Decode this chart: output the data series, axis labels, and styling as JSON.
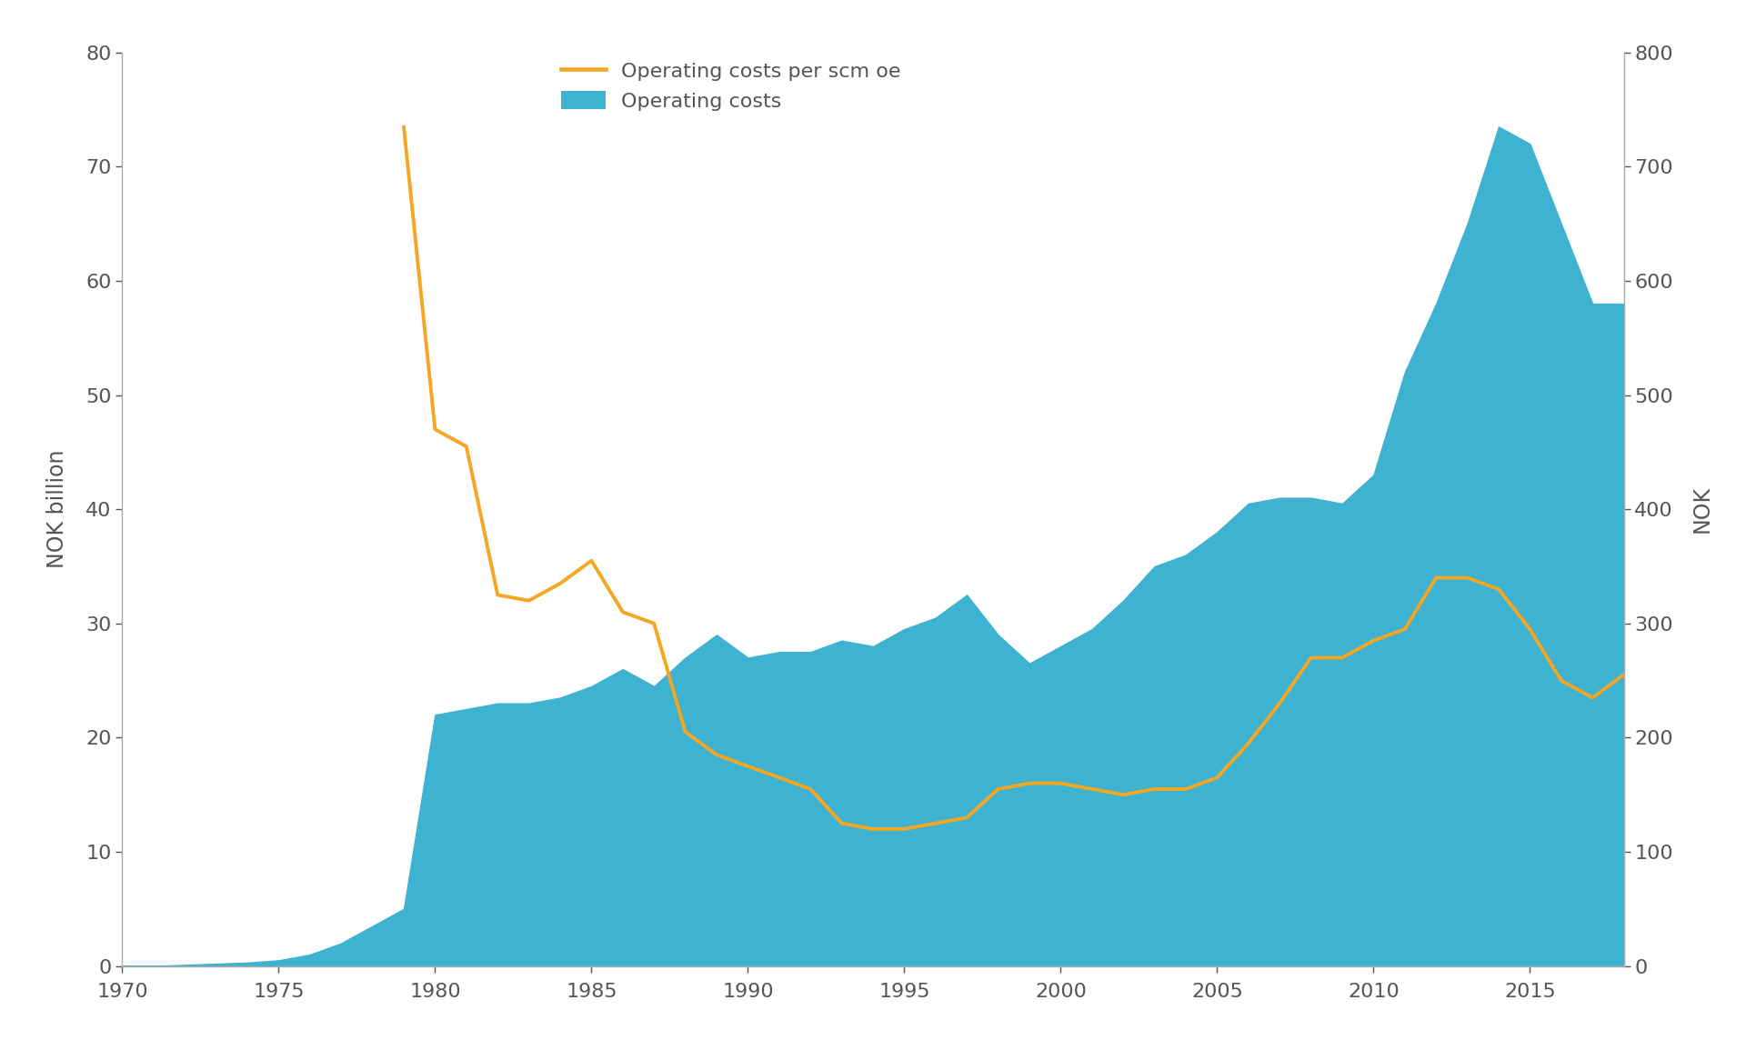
{
  "years_area": [
    1970,
    1971,
    1972,
    1973,
    1974,
    1975,
    1976,
    1977,
    1978,
    1979,
    1980,
    1981,
    1982,
    1983,
    1984,
    1985,
    1986,
    1987,
    1988,
    1989,
    1990,
    1991,
    1992,
    1993,
    1994,
    1995,
    1996,
    1997,
    1998,
    1999,
    2000,
    2001,
    2002,
    2003,
    2004,
    2005,
    2006,
    2007,
    2008,
    2009,
    2010,
    2011,
    2012,
    2013,
    2014,
    2015,
    2016,
    2017,
    2018
  ],
  "operating_costs_bn": [
    0,
    0,
    0.1,
    0.2,
    0.3,
    0.5,
    1.0,
    2.0,
    3.5,
    5.0,
    22.0,
    22.5,
    23.0,
    23.0,
    23.5,
    24.5,
    26.0,
    24.5,
    27.0,
    29.0,
    27.0,
    27.5,
    27.5,
    28.5,
    28.0,
    29.5,
    30.5,
    32.5,
    29.0,
    26.5,
    28.0,
    29.5,
    32.0,
    35.0,
    36.0,
    38.0,
    40.5,
    41.0,
    41.0,
    40.5,
    43.0,
    52.0,
    58.0,
    65.0,
    73.5,
    72.0,
    65.0,
    58.0,
    58.0
  ],
  "years_line": [
    1979,
    1980,
    1981,
    1982,
    1983,
    1984,
    1985,
    1986,
    1987,
    1988,
    1989,
    1990,
    1991,
    1992,
    1993,
    1994,
    1995,
    1996,
    1997,
    1998,
    1999,
    2000,
    2001,
    2002,
    2003,
    2004,
    2005,
    2006,
    2007,
    2008,
    2009,
    2010,
    2011,
    2012,
    2013,
    2014,
    2015,
    2016,
    2017,
    2018
  ],
  "unit_costs_nok": [
    735,
    470,
    455,
    325,
    320,
    335,
    355,
    310,
    300,
    205,
    185,
    175,
    165,
    155,
    125,
    120,
    120,
    125,
    130,
    155,
    160,
    160,
    155,
    150,
    155,
    155,
    165,
    195,
    230,
    270,
    270,
    285,
    295,
    340,
    340,
    330,
    295,
    250,
    235,
    255
  ],
  "area_color": "#3db3d1",
  "line_color": "#f5a623",
  "background_color": "#ffffff",
  "text_color": "#555555",
  "spine_color": "#aaaaaa",
  "ylabel_left": "NOK billion",
  "ylabel_right": "NOK",
  "ylim_left": [
    0,
    80
  ],
  "ylim_right": [
    0,
    800
  ],
  "xlim": [
    1970,
    2018
  ],
  "xticks": [
    1970,
    1975,
    1980,
    1985,
    1990,
    1995,
    2000,
    2005,
    2010,
    2015
  ],
  "yticks_left": [
    0,
    10,
    20,
    30,
    40,
    50,
    60,
    70,
    80
  ],
  "yticks_right": [
    0,
    100,
    200,
    300,
    400,
    500,
    600,
    700,
    800
  ],
  "legend_labels": [
    "Operating costs per scm oe",
    "Operating costs"
  ],
  "line_width": 2.8,
  "label_fontsize": 17,
  "tick_fontsize": 16,
  "legend_fontsize": 16
}
